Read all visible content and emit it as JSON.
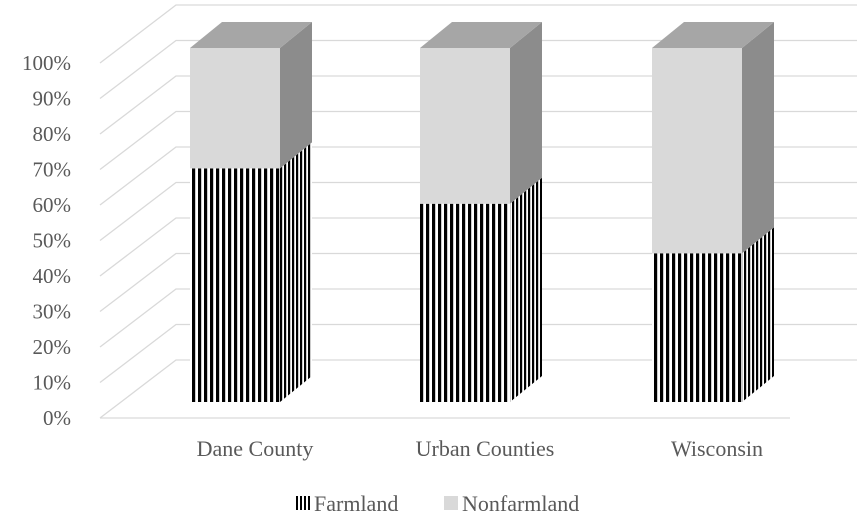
{
  "chart_data": {
    "type": "bar",
    "stacked": true,
    "percent_stacked": true,
    "three_d": true,
    "categories": [
      "Dane County",
      "Urban Counties",
      "Wisconsin"
    ],
    "series": [
      {
        "name": "Farmland",
        "values": [
          66,
          56,
          42
        ],
        "pattern": "vertical-stripes",
        "color": "#000000"
      },
      {
        "name": "Nonfarmland",
        "values": [
          34,
          44,
          58
        ],
        "color": "#d9d9d9"
      }
    ],
    "y_ticks": [
      "0%",
      "10%",
      "20%",
      "30%",
      "40%",
      "50%",
      "60%",
      "70%",
      "80%",
      "90%",
      "100%"
    ],
    "ylim": [
      0,
      100
    ],
    "grid": true,
    "legend_position": "bottom",
    "colors": {
      "grid": "#d9d9d9",
      "text": "#595959",
      "side_light": "#8c8c8c",
      "top": "#a6a6a6"
    }
  }
}
